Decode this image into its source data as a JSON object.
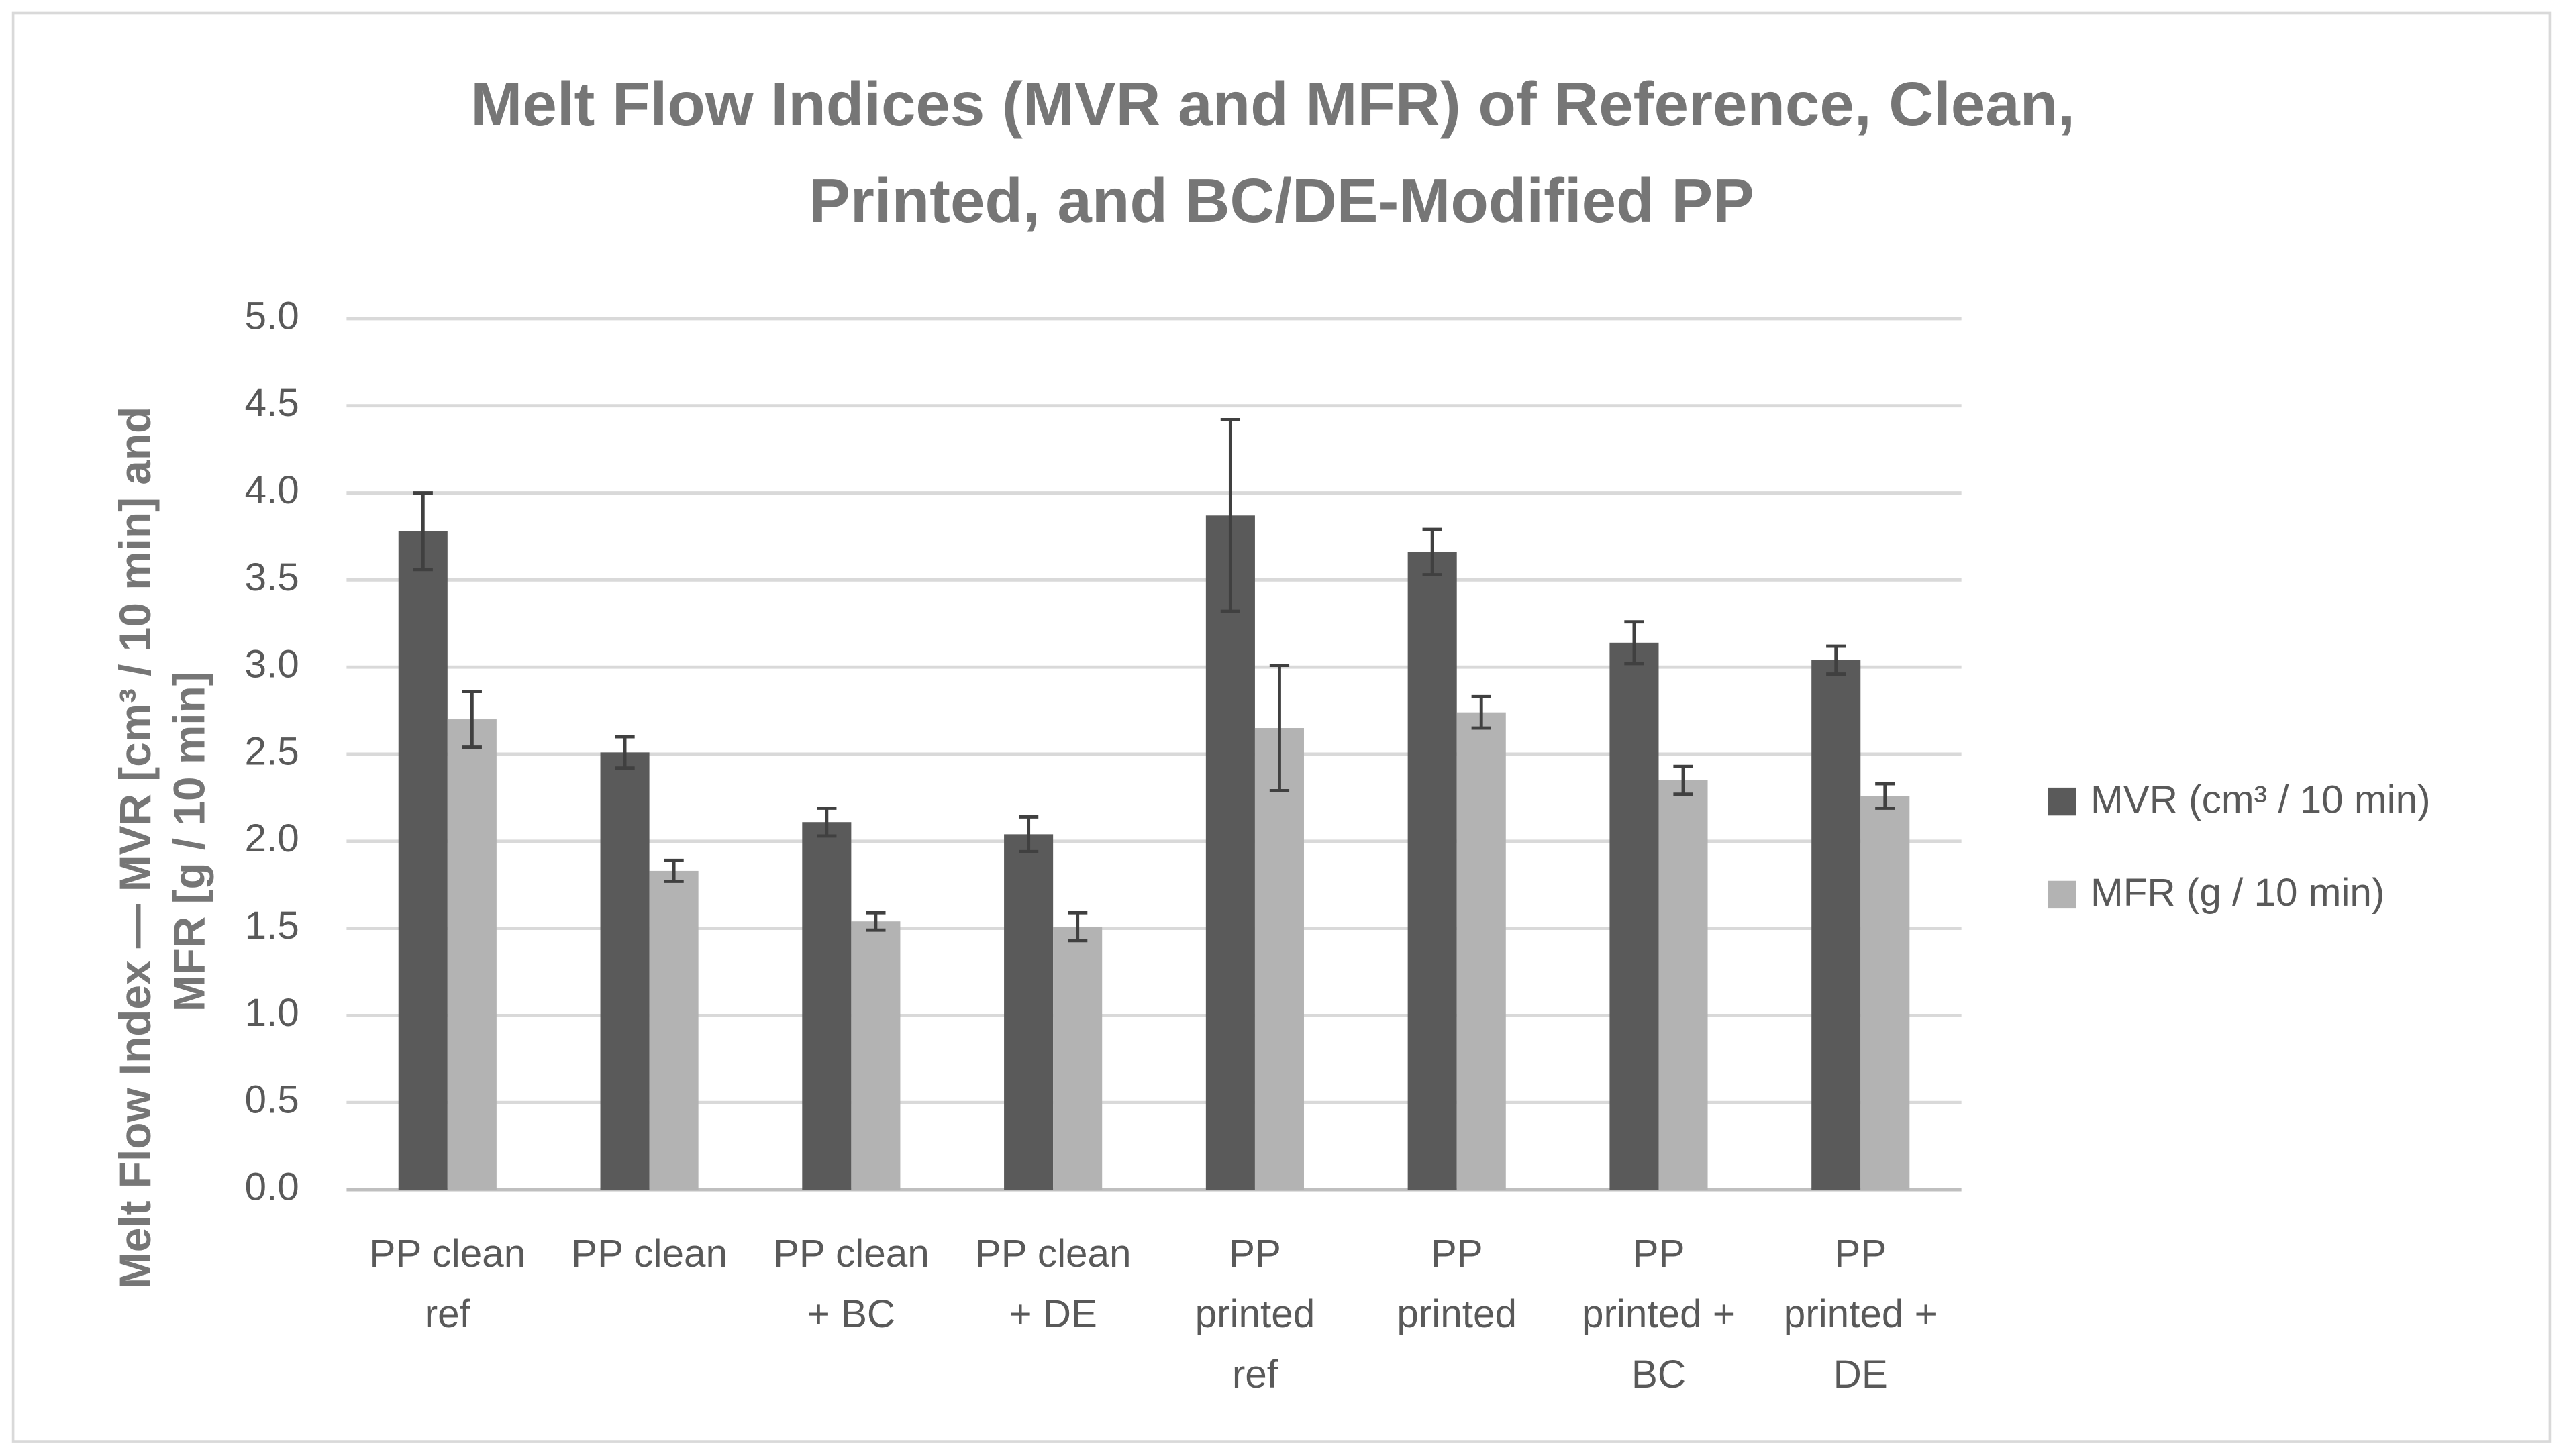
{
  "chart_data": {
    "type": "bar",
    "title": [
      "Melt Flow Indices (MVR and MFR) of Reference, Clean,",
      "Printed, and BC/DE-Modified PP"
    ],
    "y_label": [
      "Melt Flow Index — MVR [cm³ / 10 min] and",
      "MFR [g / 10 min]"
    ],
    "categories": [
      [
        "PP clean",
        "ref"
      ],
      [
        "PP clean"
      ],
      [
        "PP clean",
        "+ BC"
      ],
      [
        "PP clean",
        "+ DE"
      ],
      [
        "PP",
        "printed",
        "ref"
      ],
      [
        "PP",
        "printed"
      ],
      [
        "PP",
        "printed +",
        "BC"
      ],
      [
        "PP",
        "printed +",
        "DE"
      ]
    ],
    "series": [
      {
        "name": "MVR (cm³ / 10 min)",
        "color": "#5a5a5a",
        "values": [
          3.78,
          2.51,
          2.11,
          2.04,
          3.87,
          3.66,
          3.14,
          3.04
        ],
        "errors": [
          0.22,
          0.09,
          0.08,
          0.1,
          0.55,
          0.13,
          0.12,
          0.08
        ]
      },
      {
        "name": "MFR (g / 10 min)",
        "color": "#b3b3b3",
        "values": [
          2.7,
          1.83,
          1.54,
          1.51,
          2.65,
          2.74,
          2.35,
          2.26
        ],
        "errors": [
          0.16,
          0.06,
          0.05,
          0.08,
          0.36,
          0.09,
          0.08,
          0.07
        ]
      }
    ],
    "ylim": [
      0,
      5
    ],
    "yticks": [
      {
        "value": 0,
        "label": "0.0"
      },
      {
        "value": 0.5,
        "label": "0.5"
      },
      {
        "value": 1,
        "label": "1.0"
      },
      {
        "value": 1.5,
        "label": "1.5"
      },
      {
        "value": 2,
        "label": "2.0"
      },
      {
        "value": 2.5,
        "label": "2.5"
      },
      {
        "value": 3,
        "label": "3.0"
      },
      {
        "value": 3.5,
        "label": "3.5"
      },
      {
        "value": 4,
        "label": "4.0"
      },
      {
        "value": 4.5,
        "label": "4.5"
      },
      {
        "value": 5,
        "label": "5.0"
      }
    ],
    "grid": true,
    "legend": "right",
    "error_color": "#404040"
  }
}
